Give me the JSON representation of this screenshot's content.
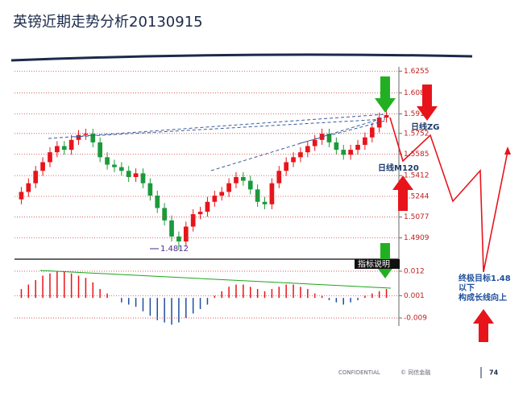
{
  "title": "英镑近期走势分析20130915",
  "chart_data": [
    {
      "type": "candlestick",
      "open": [
        1.522,
        1.528,
        1.535,
        1.545,
        1.552,
        1.56,
        1.565,
        1.562,
        1.57,
        1.574,
        1.575,
        1.568,
        1.556,
        1.55,
        1.548,
        1.545,
        1.54,
        1.543,
        1.535,
        1.525,
        1.515,
        1.505,
        1.492,
        1.488,
        1.5,
        1.51,
        1.512,
        1.52,
        1.525,
        1.528,
        1.535,
        1.54,
        1.537,
        1.53,
        1.52,
        1.518,
        1.535,
        1.545,
        1.552,
        1.556,
        1.56,
        1.565,
        1.57,
        1.575,
        1.568,
        1.562,
        1.558,
        1.562,
        1.566,
        1.572,
        1.58,
        1.588
      ],
      "high": [
        1.532,
        1.539,
        1.549,
        1.556,
        1.564,
        1.569,
        1.569,
        1.574,
        1.578,
        1.579,
        1.579,
        1.572,
        1.56,
        1.554,
        1.552,
        1.549,
        1.547,
        1.547,
        1.539,
        1.529,
        1.519,
        1.509,
        1.496,
        1.504,
        1.514,
        1.516,
        1.524,
        1.529,
        1.532,
        1.539,
        1.544,
        1.544,
        1.541,
        1.534,
        1.524,
        1.539,
        1.549,
        1.556,
        1.56,
        1.564,
        1.569,
        1.574,
        1.579,
        1.579,
        1.572,
        1.566,
        1.566,
        1.57,
        1.576,
        1.584,
        1.592,
        1.594
      ],
      "low": [
        1.518,
        1.524,
        1.531,
        1.541,
        1.548,
        1.556,
        1.558,
        1.558,
        1.566,
        1.57,
        1.564,
        1.552,
        1.546,
        1.544,
        1.541,
        1.536,
        1.536,
        1.531,
        1.521,
        1.511,
        1.501,
        1.488,
        1.4812,
        1.484,
        1.496,
        1.506,
        1.508,
        1.516,
        1.521,
        1.524,
        1.531,
        1.533,
        1.526,
        1.516,
        1.514,
        1.514,
        1.531,
        1.541,
        1.548,
        1.552,
        1.556,
        1.561,
        1.566,
        1.564,
        1.558,
        1.554,
        1.554,
        1.558,
        1.562,
        1.568,
        1.576,
        1.584
      ],
      "close": [
        1.528,
        1.535,
        1.545,
        1.552,
        1.56,
        1.565,
        1.562,
        1.57,
        1.574,
        1.575,
        1.568,
        1.556,
        1.55,
        1.548,
        1.545,
        1.54,
        1.543,
        1.535,
        1.525,
        1.515,
        1.505,
        1.492,
        1.488,
        1.5,
        1.51,
        1.512,
        1.52,
        1.525,
        1.528,
        1.535,
        1.54,
        1.537,
        1.53,
        1.52,
        1.518,
        1.535,
        1.545,
        1.552,
        1.556,
        1.56,
        1.565,
        1.57,
        1.575,
        1.568,
        1.562,
        1.558,
        1.562,
        1.566,
        1.572,
        1.58,
        1.588,
        1.59
      ],
      "up_color": "#e8141b",
      "down_color": "#1a9a3a",
      "ylim": [
        1.475,
        1.629
      ],
      "yticks": [
        1.6255,
        1.608,
        1.591,
        1.5752,
        1.5585,
        1.5412,
        1.5244,
        1.5077,
        1.4909
      ],
      "grid": true,
      "annotations": [
        "1.4812",
        "日线ZG",
        "日线M120"
      ]
    },
    {
      "type": "bar",
      "values": [
        0.004,
        0.006,
        0.008,
        0.01,
        0.011,
        0.012,
        0.012,
        0.011,
        0.01,
        0.009,
        0.007,
        0.004,
        0.002,
        0.0,
        -0.002,
        -0.003,
        -0.004,
        -0.006,
        -0.008,
        -0.01,
        -0.011,
        -0.012,
        -0.011,
        -0.009,
        -0.007,
        -0.005,
        -0.003,
        0.001,
        0.003,
        0.005,
        0.006,
        0.006,
        0.005,
        0.004,
        0.003,
        0.004,
        0.005,
        0.006,
        0.006,
        0.005,
        0.004,
        0.002,
        0.001,
        -0.001,
        -0.002,
        -0.003,
        -0.002,
        -0.001,
        0.001,
        0.002,
        0.003,
        0.004
      ],
      "positive_color": "#e8141b",
      "negative_color": "#1f4e9c",
      "ylim": [
        -0.0126,
        0.0174
      ],
      "yticks": [
        0.012,
        0.001,
        -0.009
      ],
      "grid": true,
      "annotations": [
        "指标说明"
      ]
    }
  ],
  "note": {
    "lines": [
      "终极目标1.48",
      "以下",
      "构成长线向上"
    ]
  },
  "footer": {
    "confidential": "CONFIDENTIAL",
    "copyright": "© 同信金融",
    "page": "74"
  }
}
